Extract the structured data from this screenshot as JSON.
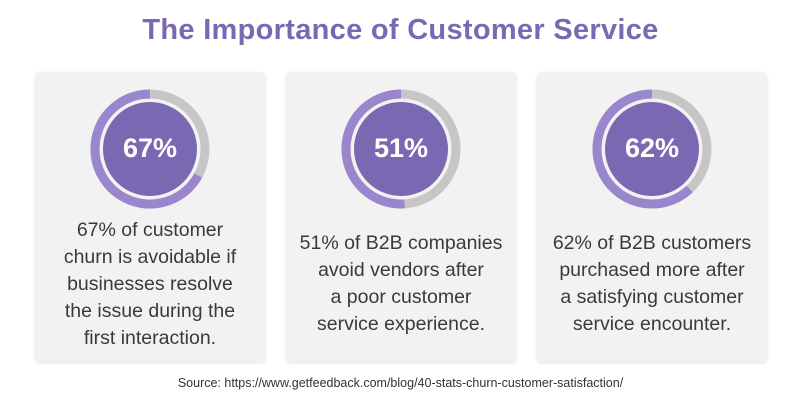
{
  "chart_data": {
    "type": "donut",
    "title": "The Importance of Customer Service",
    "source": "Source: https://www.getfeedback.com/blog/40-stats-churn-customer-satisfaction/",
    "colors": {
      "title": "#7b68b3",
      "ring_fill": "#9a86cc",
      "ring_track": "#c6c6c6",
      "center": "#7b68b3",
      "center_text": "#ffffff",
      "description_text": "#3a3a3a",
      "source_text": "#333333"
    },
    "stats": [
      {
        "value": 67,
        "label": "67%",
        "lines": [
          "67% of customer",
          "churn is avoidable if",
          "businesses resolve",
          "the issue during the",
          "first interaction."
        ]
      },
      {
        "value": 51,
        "label": "51%",
        "lines": [
          "51% of B2B companies",
          "avoid vendors after",
          "a poor customer",
          "service experience."
        ]
      },
      {
        "value": 62,
        "label": "62%",
        "lines": [
          "62% of B2B customers",
          "purchased more after",
          "a satisfying customer",
          "service encounter."
        ]
      }
    ]
  }
}
